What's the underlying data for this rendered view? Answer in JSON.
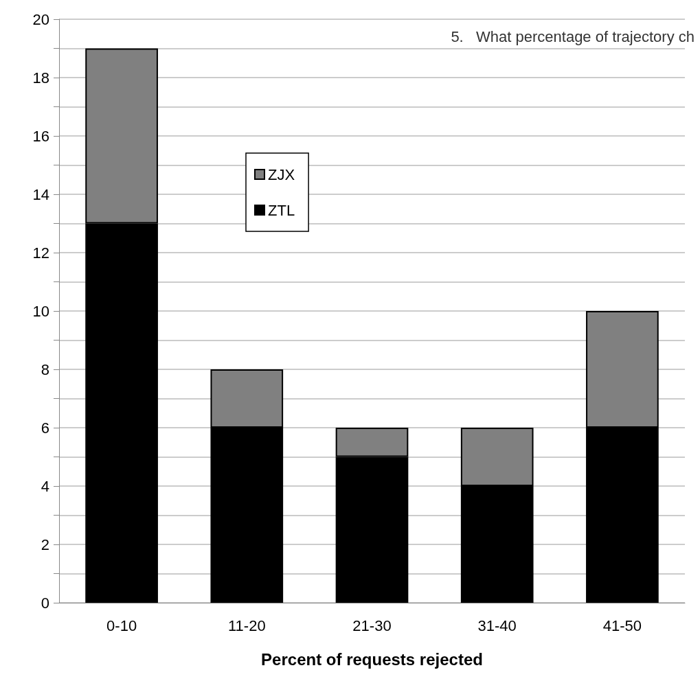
{
  "chart_data": {
    "type": "bar",
    "stacked": true,
    "xlabel": "Percent of requests rejected",
    "annotations": [
      "5.   What percentage of trajectory ch"
    ],
    "categories": [
      "0-10",
      "11-20",
      "21-30",
      "31-40",
      "41-50"
    ],
    "series": [
      {
        "name": "ZTL",
        "color": "#000000",
        "values": [
          13,
          6,
          5,
          4,
          6
        ]
      },
      {
        "name": "ZJX",
        "color": "#808080",
        "values": [
          6,
          2,
          1,
          2,
          4
        ]
      }
    ],
    "ylim": [
      0,
      20
    ],
    "yticks": [
      0,
      {
        "value": 1,
        "label": null
      },
      2,
      {
        "value": 3,
        "label": null
      },
      4,
      {
        "value": 5,
        "label": null
      },
      6,
      {
        "value": 7,
        "label": null
      },
      8,
      {
        "value": 9,
        "label": null
      },
      10,
      {
        "value": 11,
        "label": null
      },
      12,
      {
        "value": 13,
        "label": null
      },
      14,
      {
        "value": 15,
        "label": null
      },
      16,
      {
        "value": 17,
        "label": null
      },
      18,
      {
        "value": 19,
        "label": null
      },
      20
    ],
    "grid": "y",
    "legend": "left"
  }
}
